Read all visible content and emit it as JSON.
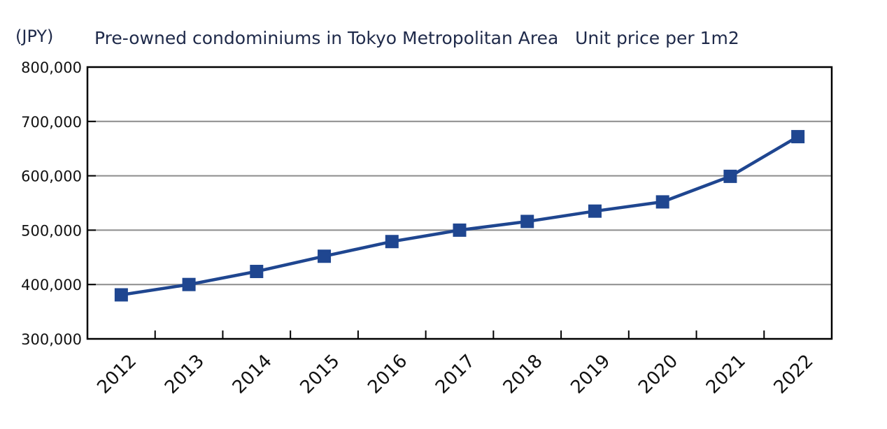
{
  "chart_data": {
    "type": "line",
    "title": "Pre-owned condominiums in Tokyo Metropolitan Area   Unit price per 1m2",
    "unit_label": "(JPY)",
    "xlabel": "",
    "ylabel": "",
    "categories": [
      "2012",
      "2013",
      "2014",
      "2015",
      "2016",
      "2017",
      "2018",
      "2019",
      "2020",
      "2021",
      "2022"
    ],
    "series": [
      {
        "values": [
          381000,
          400000,
          424000,
          452000,
          479000,
          500000,
          516000,
          535000,
          552000,
          599000,
          672000
        ]
      }
    ],
    "ylim": [
      300000,
      800000
    ],
    "yticks": [
      300000,
      400000,
      500000,
      600000,
      700000,
      800000
    ],
    "ytick_labels": [
      "300,000",
      "400,000",
      "500,000",
      "600,000",
      "700,000",
      "800,000"
    ],
    "grid": true,
    "legend": "none",
    "colors": {
      "line": "#1f4690",
      "gridline": "#8c8c8c",
      "axis": "#000000",
      "text": "#1f2a4a"
    }
  }
}
